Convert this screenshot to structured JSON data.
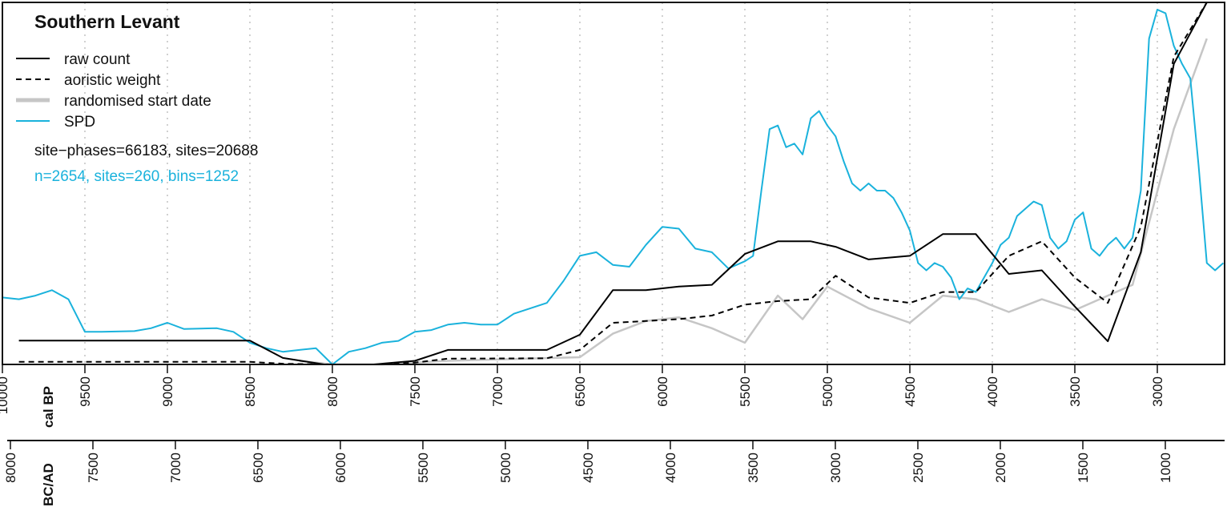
{
  "chart_data": {
    "type": "line",
    "title": "Southern Levant",
    "xlabel": "cal BP",
    "xlabel_secondary": "BC/AD",
    "xlim": [
      10000,
      2600
    ],
    "ylim": [
      0,
      1
    ],
    "x_ticks": [
      10000,
      9500,
      9000,
      8500,
      8000,
      7500,
      7000,
      6500,
      6000,
      5500,
      5000,
      4500,
      4000,
      3500,
      3000
    ],
    "x_tick_labels": [
      "10000",
      "9500",
      "9000",
      "8500",
      "8000",
      "7500",
      "7000",
      "6500",
      "6000",
      "5500",
      "5000",
      "4500",
      "4000",
      "3500",
      "3000"
    ],
    "bcad_ticks": [
      "8000",
      "7500",
      "7000",
      "6500",
      "6000",
      "5500",
      "5000",
      "4500",
      "4000",
      "3500",
      "3000",
      "2500",
      "2000",
      "1500",
      "1000"
    ],
    "grid": "vertical dotted",
    "legend_placement": "top-left",
    "annotations": [
      "site−phases=66183, sites=20688",
      "n=2654, sites=260, bins=1252"
    ],
    "series": [
      {
        "name": "raw count",
        "color": "#000000",
        "style": "solid",
        "points": [
          [
            9900,
            0.066
          ],
          [
            8500,
            0.066
          ],
          [
            8300,
            0.018
          ],
          [
            8050,
            0
          ],
          [
            7750,
            0
          ],
          [
            7500,
            0.01
          ],
          [
            7300,
            0.04
          ],
          [
            6700,
            0.04
          ],
          [
            6500,
            0.082
          ],
          [
            6300,
            0.205
          ],
          [
            6100,
            0.205
          ],
          [
            5900,
            0.215
          ],
          [
            5700,
            0.22
          ],
          [
            5500,
            0.305
          ],
          [
            5300,
            0.34
          ],
          [
            5100,
            0.34
          ],
          [
            4950,
            0.325
          ],
          [
            4750,
            0.29
          ],
          [
            4500,
            0.3
          ],
          [
            4300,
            0.36
          ],
          [
            4100,
            0.36
          ],
          [
            3900,
            0.25
          ],
          [
            3700,
            0.26
          ],
          [
            3500,
            0.16
          ],
          [
            3300,
            0.064
          ],
          [
            3100,
            0.31
          ],
          [
            2900,
            0.83
          ],
          [
            2700,
            1.0
          ]
        ]
      },
      {
        "name": "aoristic weight",
        "color": "#000000",
        "style": "dashed",
        "points": [
          [
            9900,
            0.007
          ],
          [
            8500,
            0.007
          ],
          [
            8300,
            0.002
          ],
          [
            8000,
            0
          ],
          [
            7700,
            0
          ],
          [
            7500,
            0.005
          ],
          [
            7300,
            0.016
          ],
          [
            6700,
            0.017
          ],
          [
            6500,
            0.04
          ],
          [
            6300,
            0.115
          ],
          [
            6100,
            0.12
          ],
          [
            5900,
            0.125
          ],
          [
            5700,
            0.135
          ],
          [
            5500,
            0.165
          ],
          [
            5300,
            0.175
          ],
          [
            5100,
            0.18
          ],
          [
            4950,
            0.245
          ],
          [
            4750,
            0.185
          ],
          [
            4500,
            0.17
          ],
          [
            4300,
            0.2
          ],
          [
            4100,
            0.2
          ],
          [
            3900,
            0.3
          ],
          [
            3700,
            0.34
          ],
          [
            3500,
            0.24
          ],
          [
            3300,
            0.17
          ],
          [
            3100,
            0.38
          ],
          [
            2900,
            0.85
          ],
          [
            2700,
            1.0
          ]
        ]
      },
      {
        "name": "randomised start date",
        "color": "#c6c6c6",
        "style": "solid-thick",
        "points": [
          [
            8200,
            0.01
          ],
          [
            8000,
            0
          ],
          [
            7700,
            0
          ],
          [
            7500,
            0.005
          ],
          [
            7300,
            0.01
          ],
          [
            6500,
            0.02
          ],
          [
            6300,
            0.085
          ],
          [
            6100,
            0.12
          ],
          [
            5900,
            0.13
          ],
          [
            5700,
            0.1
          ],
          [
            5500,
            0.06
          ],
          [
            5300,
            0.19
          ],
          [
            5150,
            0.125
          ],
          [
            5000,
            0.215
          ],
          [
            4750,
            0.155
          ],
          [
            4500,
            0.115
          ],
          [
            4300,
            0.19
          ],
          [
            4100,
            0.18
          ],
          [
            3900,
            0.145
          ],
          [
            3700,
            0.18
          ],
          [
            3500,
            0.15
          ],
          [
            3300,
            0.19
          ],
          [
            3150,
            0.22
          ],
          [
            2900,
            0.65
          ],
          [
            2700,
            0.9
          ]
        ]
      },
      {
        "name": "SPD",
        "color": "#1ab2dc",
        "style": "solid",
        "points": [
          [
            10000,
            0.185
          ],
          [
            9900,
            0.18
          ],
          [
            9800,
            0.19
          ],
          [
            9700,
            0.205
          ],
          [
            9600,
            0.18
          ],
          [
            9500,
            0.09
          ],
          [
            9400,
            0.09
          ],
          [
            9200,
            0.092
          ],
          [
            9100,
            0.1
          ],
          [
            9000,
            0.115
          ],
          [
            8900,
            0.098
          ],
          [
            8700,
            0.1
          ],
          [
            8600,
            0.09
          ],
          [
            8500,
            0.06
          ],
          [
            8400,
            0.045
          ],
          [
            8300,
            0.035
          ],
          [
            8200,
            0.04
          ],
          [
            8100,
            0.045
          ],
          [
            8000,
            0
          ],
          [
            7900,
            0.035
          ],
          [
            7800,
            0.045
          ],
          [
            7700,
            0.06
          ],
          [
            7600,
            0.065
          ],
          [
            7500,
            0.09
          ],
          [
            7400,
            0.095
          ],
          [
            7300,
            0.11
          ],
          [
            7200,
            0.115
          ],
          [
            7100,
            0.11
          ],
          [
            7000,
            0.11
          ],
          [
            6900,
            0.14
          ],
          [
            6800,
            0.155
          ],
          [
            6700,
            0.17
          ],
          [
            6600,
            0.23
          ],
          [
            6500,
            0.3
          ],
          [
            6400,
            0.31
          ],
          [
            6300,
            0.275
          ],
          [
            6200,
            0.27
          ],
          [
            6100,
            0.33
          ],
          [
            6000,
            0.38
          ],
          [
            5900,
            0.375
          ],
          [
            5800,
            0.32
          ],
          [
            5700,
            0.31
          ],
          [
            5600,
            0.265
          ],
          [
            5500,
            0.285
          ],
          [
            5450,
            0.3
          ],
          [
            5400,
            0.48
          ],
          [
            5350,
            0.65
          ],
          [
            5300,
            0.66
          ],
          [
            5250,
            0.6
          ],
          [
            5200,
            0.61
          ],
          [
            5150,
            0.58
          ],
          [
            5100,
            0.68
          ],
          [
            5050,
            0.7
          ],
          [
            5000,
            0.66
          ],
          [
            4950,
            0.63
          ],
          [
            4900,
            0.56
          ],
          [
            4850,
            0.5
          ],
          [
            4800,
            0.48
          ],
          [
            4750,
            0.5
          ],
          [
            4700,
            0.48
          ],
          [
            4650,
            0.48
          ],
          [
            4600,
            0.46
          ],
          [
            4550,
            0.42
          ],
          [
            4500,
            0.37
          ],
          [
            4450,
            0.28
          ],
          [
            4400,
            0.26
          ],
          [
            4350,
            0.28
          ],
          [
            4300,
            0.27
          ],
          [
            4250,
            0.24
          ],
          [
            4200,
            0.18
          ],
          [
            4150,
            0.21
          ],
          [
            4100,
            0.2
          ],
          [
            4050,
            0.24
          ],
          [
            4000,
            0.28
          ],
          [
            3950,
            0.33
          ],
          [
            3900,
            0.35
          ],
          [
            3850,
            0.41
          ],
          [
            3800,
            0.43
          ],
          [
            3750,
            0.45
          ],
          [
            3700,
            0.44
          ],
          [
            3650,
            0.35
          ],
          [
            3600,
            0.32
          ],
          [
            3550,
            0.34
          ],
          [
            3500,
            0.4
          ],
          [
            3450,
            0.42
          ],
          [
            3400,
            0.32
          ],
          [
            3350,
            0.3
          ],
          [
            3300,
            0.33
          ],
          [
            3250,
            0.35
          ],
          [
            3200,
            0.32
          ],
          [
            3150,
            0.35
          ],
          [
            3100,
            0.48
          ],
          [
            3050,
            0.9
          ],
          [
            3000,
            0.98
          ],
          [
            2950,
            0.97
          ],
          [
            2900,
            0.88
          ],
          [
            2850,
            0.83
          ],
          [
            2800,
            0.79
          ],
          [
            2750,
            0.55
          ],
          [
            2700,
            0.28
          ],
          [
            2650,
            0.26
          ],
          [
            2600,
            0.28
          ]
        ]
      }
    ]
  }
}
